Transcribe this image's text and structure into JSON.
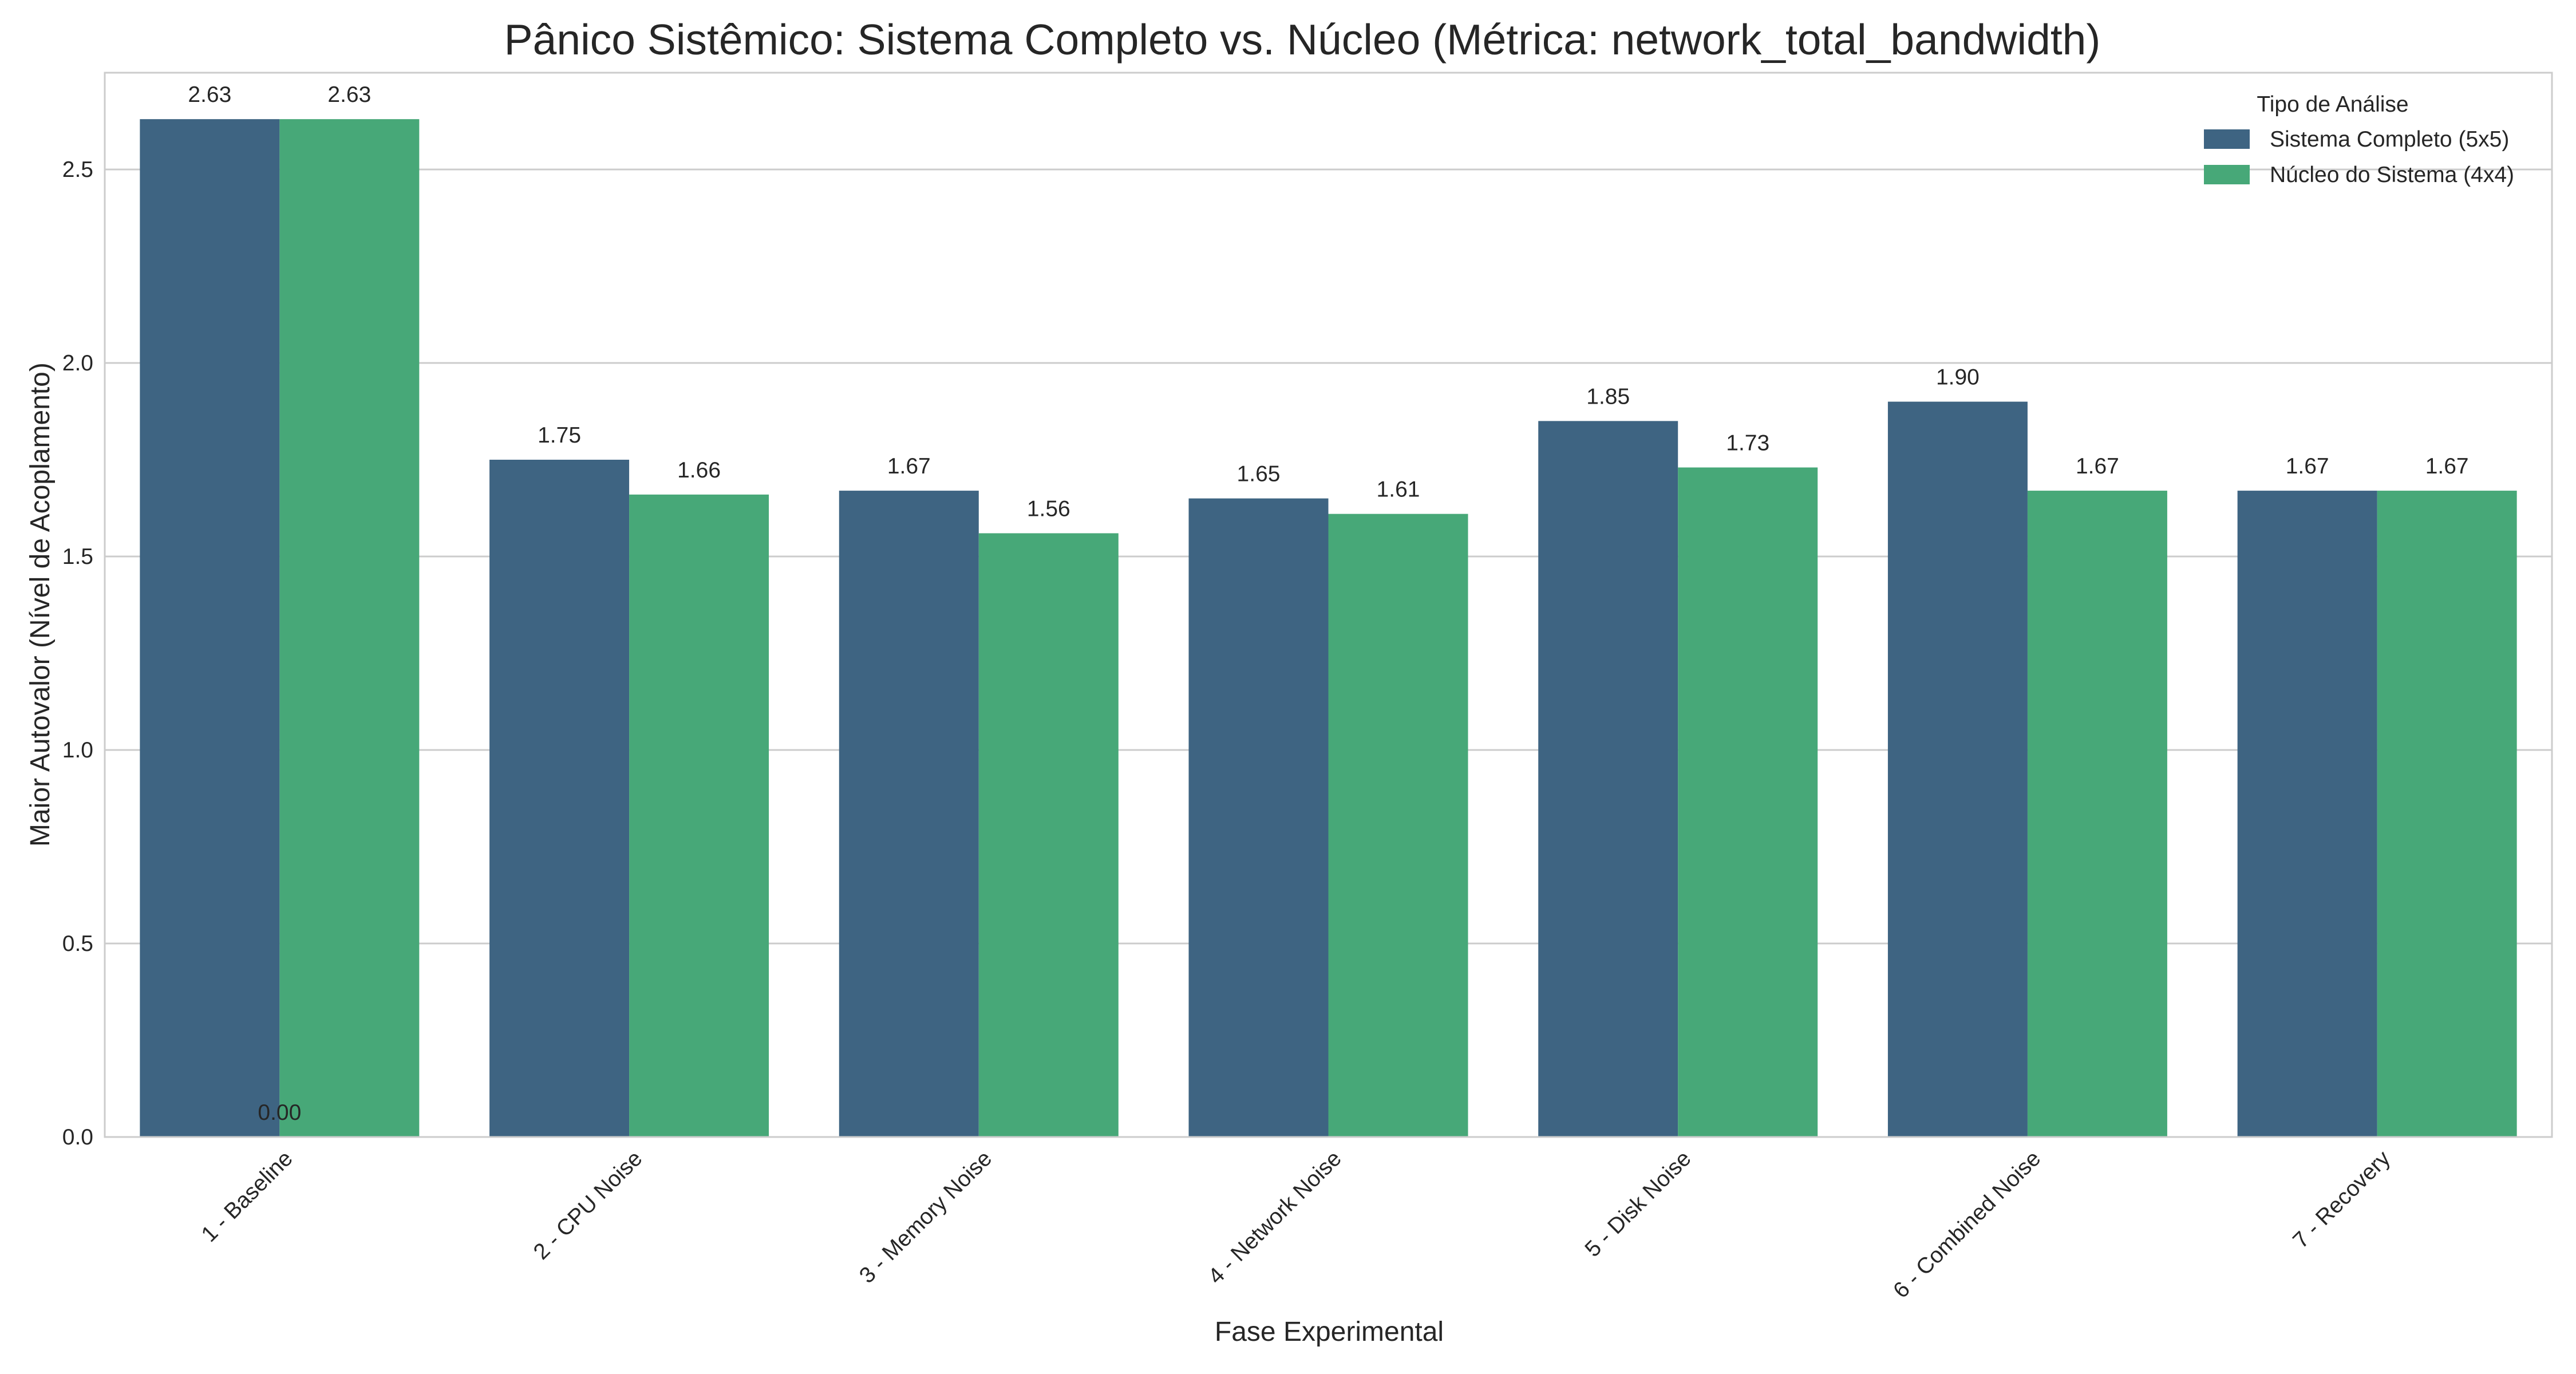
{
  "chart_data": {
    "type": "bar",
    "title": "Pânico Sistêmico: Sistema Completo vs. Núcleo (Métrica: network_total_bandwidth)",
    "xlabel": "Fase Experimental",
    "ylabel": "Maior Autovalor (Nível de Acoplamento)",
    "categories": [
      "1 - Baseline",
      "2 - CPU Noise",
      "3 - Memory Noise",
      "4 - Network Noise",
      "5 - Disk Noise",
      "6 - Combined Noise",
      "7 - Recovery"
    ],
    "series": [
      {
        "name": "Sistema Completo (5x5)",
        "color": "#3e6482",
        "values": [
          2.63,
          1.75,
          1.67,
          1.65,
          1.85,
          1.9,
          1.67
        ],
        "labels": [
          "2.63",
          "1.75",
          "1.67",
          "1.65",
          "1.85",
          "1.90",
          "1.67"
        ]
      },
      {
        "name": "Núcleo do Sistema (4x4)",
        "color": "#47a878",
        "values": [
          2.63,
          1.66,
          1.56,
          1.61,
          1.73,
          1.67,
          1.67
        ],
        "labels": [
          "2.63",
          "1.66",
          "1.56",
          "1.61",
          "1.73",
          "1.67",
          "1.67"
        ]
      }
    ],
    "annotations": [
      {
        "text": "0.00",
        "category": "1 - Baseline",
        "y": 0.0
      }
    ],
    "ylim": [
      0,
      2.75
    ],
    "yticks": [
      0.0,
      0.5,
      1.0,
      1.5,
      2.0,
      2.5
    ],
    "ytick_labels": [
      "0.0",
      "0.5",
      "1.0",
      "1.5",
      "2.0",
      "2.5"
    ],
    "grid": "horizontal",
    "legend": {
      "title": "Tipo de Análise",
      "placement": "top-right"
    }
  }
}
